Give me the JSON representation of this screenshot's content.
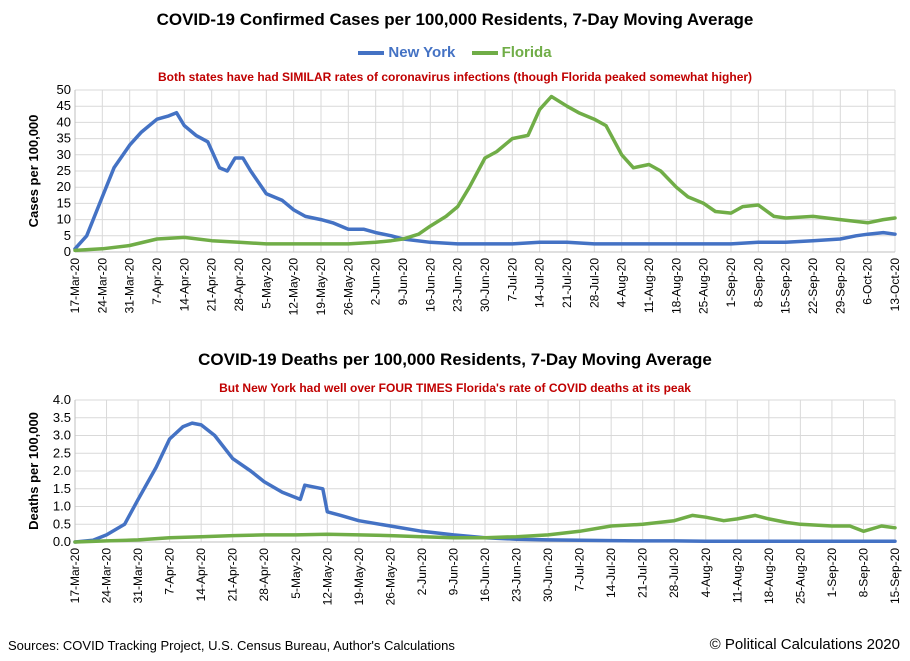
{
  "footer": {
    "sources": "Sources:  COVID Tracking Project, U.S. Census Bureau, Author's Calculations",
    "copyright": "© Political Calculations 2020"
  },
  "colors": {
    "new_york": "#4472c4",
    "florida": "#70ad47",
    "grid": "#d9d9d9",
    "subtitle": "#c00000"
  },
  "chart_data": [
    {
      "type": "line",
      "title": "COVID-19 Confirmed Cases per 100,000 Residents, 7-Day Moving Average",
      "subtitle": "Both states have had SIMILAR rates of coronavirus infections (though Florida peaked somewhat higher)",
      "ylabel": "Cases per 100,000",
      "xlabel": "",
      "ylim": [
        0,
        50
      ],
      "yticks": [
        0,
        5,
        10,
        15,
        20,
        25,
        30,
        35,
        40,
        45,
        50
      ],
      "x_start": "17-Mar-20",
      "x_tick_labels": [
        "17-Mar-20",
        "24-Mar-20",
        "31-Mar-20",
        "7-Apr-20",
        "14-Apr-20",
        "21-Apr-20",
        "28-Apr-20",
        "5-May-20",
        "12-May-20",
        "19-May-20",
        "26-May-20",
        "2-Jun-20",
        "9-Jun-20",
        "16-Jun-20",
        "23-Jun-20",
        "30-Jun-20",
        "7-Jul-20",
        "14-Jul-20",
        "21-Jul-20",
        "28-Jul-20",
        "4-Aug-20",
        "11-Aug-20",
        "18-Aug-20",
        "25-Aug-20",
        "1-Sep-20",
        "8-Sep-20",
        "15-Sep-20",
        "22-Sep-20",
        "29-Sep-20",
        "6-Oct-20",
        "13-Oct-20"
      ],
      "grid": true,
      "legend": "top-center",
      "series": [
        {
          "name": "New York",
          "color": "#4472c4",
          "x": [
            "17-Mar-20",
            "20-Mar-20",
            "24-Mar-20",
            "27-Mar-20",
            "31-Mar-20",
            "3-Apr-20",
            "7-Apr-20",
            "10-Apr-20",
            "12-Apr-20",
            "14-Apr-20",
            "17-Apr-20",
            "20-Apr-20",
            "23-Apr-20",
            "25-Apr-20",
            "27-Apr-20",
            "29-Apr-20",
            "1-May-20",
            "5-May-20",
            "9-May-20",
            "12-May-20",
            "15-May-20",
            "19-May-20",
            "22-May-20",
            "26-May-20",
            "30-May-20",
            "2-Jun-20",
            "6-Jun-20",
            "9-Jun-20",
            "16-Jun-20",
            "23-Jun-20",
            "30-Jun-20",
            "7-Jul-20",
            "14-Jul-20",
            "21-Jul-20",
            "28-Jul-20",
            "4-Aug-20",
            "11-Aug-20",
            "18-Aug-20",
            "25-Aug-20",
            "1-Sep-20",
            "8-Sep-20",
            "15-Sep-20",
            "22-Sep-20",
            "29-Sep-20",
            "3-Oct-20",
            "6-Oct-20",
            "10-Oct-20",
            "13-Oct-20"
          ],
          "values": [
            1,
            5,
            17,
            26,
            33,
            37,
            41,
            42,
            43,
            39,
            36,
            34,
            26,
            25,
            29,
            29,
            25,
            18,
            16,
            13,
            11,
            10,
            9,
            7,
            7,
            6,
            5,
            4,
            3,
            2.5,
            2.5,
            2.5,
            3,
            3,
            2.5,
            2.5,
            2.5,
            2.5,
            2.5,
            2.5,
            3,
            3,
            3.5,
            4,
            5,
            5.5,
            6,
            5.5
          ]
        },
        {
          "name": "Florida",
          "color": "#70ad47",
          "x": [
            "17-Mar-20",
            "24-Mar-20",
            "31-Mar-20",
            "7-Apr-20",
            "14-Apr-20",
            "21-Apr-20",
            "28-Apr-20",
            "5-May-20",
            "12-May-20",
            "19-May-20",
            "26-May-20",
            "2-Jun-20",
            "6-Jun-20",
            "9-Jun-20",
            "13-Jun-20",
            "16-Jun-20",
            "20-Jun-20",
            "23-Jun-20",
            "26-Jun-20",
            "30-Jun-20",
            "3-Jul-20",
            "7-Jul-20",
            "11-Jul-20",
            "14-Jul-20",
            "17-Jul-20",
            "21-Jul-20",
            "24-Jul-20",
            "28-Jul-20",
            "31-Jul-20",
            "4-Aug-20",
            "7-Aug-20",
            "11-Aug-20",
            "14-Aug-20",
            "18-Aug-20",
            "21-Aug-20",
            "25-Aug-20",
            "28-Aug-20",
            "1-Sep-20",
            "4-Sep-20",
            "8-Sep-20",
            "12-Sep-20",
            "15-Sep-20",
            "22-Sep-20",
            "29-Sep-20",
            "6-Oct-20",
            "10-Oct-20",
            "13-Oct-20"
          ],
          "values": [
            0.5,
            1,
            2,
            4,
            4.5,
            3.5,
            3,
            2.5,
            2.5,
            2.5,
            2.5,
            3,
            3.5,
            4,
            5.5,
            8,
            11,
            14,
            20,
            29,
            31,
            35,
            36,
            44,
            48,
            45,
            43,
            41,
            39,
            30,
            26,
            27,
            25,
            20,
            17,
            15,
            12.5,
            12,
            14,
            14.5,
            11,
            10.5,
            11,
            10,
            9,
            10,
            10.5
          ]
        }
      ]
    },
    {
      "type": "line",
      "title": "COVID-19 Deaths per 100,000 Residents, 7-Day Moving Average",
      "subtitle": "But New York had well over FOUR TIMES Florida's rate of COVID deaths at its peak",
      "ylabel": "Deaths per 100,000",
      "xlabel": "",
      "ylim": [
        0,
        4
      ],
      "yticks": [
        "0.0",
        "0.5",
        "1.0",
        "1.5",
        "2.0",
        "2.5",
        "3.0",
        "3.5",
        "4.0"
      ],
      "x_start": "17-Mar-20",
      "x_tick_labels": [
        "17-Mar-20",
        "24-Mar-20",
        "31-Mar-20",
        "7-Apr-20",
        "14-Apr-20",
        "21-Apr-20",
        "28-Apr-20",
        "5-May-20",
        "12-May-20",
        "19-May-20",
        "26-May-20",
        "2-Jun-20",
        "9-Jun-20",
        "16-Jun-20",
        "23-Jun-20",
        "30-Jun-20",
        "7-Jul-20",
        "14-Jul-20",
        "21-Jul-20",
        "28-Jul-20",
        "4-Aug-20",
        "11-Aug-20",
        "18-Aug-20",
        "25-Aug-20",
        "1-Sep-20",
        "8-Sep-20",
        "15-Sep-20"
      ],
      "grid": true,
      "series": [
        {
          "name": "New York",
          "color": "#4472c4",
          "x": [
            "17-Mar-20",
            "21-Mar-20",
            "24-Mar-20",
            "28-Mar-20",
            "31-Mar-20",
            "4-Apr-20",
            "7-Apr-20",
            "10-Apr-20",
            "12-Apr-20",
            "14-Apr-20",
            "17-Apr-20",
            "21-Apr-20",
            "25-Apr-20",
            "28-Apr-20",
            "2-May-20",
            "6-May-20",
            "7-May-20",
            "11-May-20",
            "12-May-20",
            "15-May-20",
            "19-May-20",
            "26-May-20",
            "2-Jun-20",
            "9-Jun-20",
            "16-Jun-20",
            "23-Jun-20",
            "30-Jun-20",
            "7-Jul-20",
            "14-Jul-20",
            "21-Jul-20",
            "28-Jul-20",
            "4-Aug-20",
            "11-Aug-20",
            "18-Aug-20",
            "25-Aug-20",
            "1-Sep-20",
            "8-Sep-20",
            "15-Sep-20"
          ],
          "values": [
            0,
            0.05,
            0.2,
            0.5,
            1.2,
            2.1,
            2.9,
            3.25,
            3.35,
            3.3,
            3.0,
            2.35,
            2.0,
            1.7,
            1.4,
            1.2,
            1.6,
            1.5,
            0.85,
            0.75,
            0.6,
            0.45,
            0.3,
            0.2,
            0.12,
            0.08,
            0.06,
            0.05,
            0.04,
            0.03,
            0.03,
            0.02,
            0.02,
            0.02,
            0.02,
            0.02,
            0.02,
            0.02
          ]
        },
        {
          "name": "Florida",
          "color": "#70ad47",
          "x": [
            "17-Mar-20",
            "24-Mar-20",
            "31-Mar-20",
            "7-Apr-20",
            "14-Apr-20",
            "21-Apr-20",
            "28-Apr-20",
            "5-May-20",
            "12-May-20",
            "19-May-20",
            "26-May-20",
            "2-Jun-20",
            "9-Jun-20",
            "16-Jun-20",
            "23-Jun-20",
            "30-Jun-20",
            "7-Jul-20",
            "14-Jul-20",
            "21-Jul-20",
            "28-Jul-20",
            "1-Aug-20",
            "4-Aug-20",
            "8-Aug-20",
            "11-Aug-20",
            "15-Aug-20",
            "18-Aug-20",
            "22-Aug-20",
            "25-Aug-20",
            "1-Sep-20",
            "5-Sep-20",
            "8-Sep-20",
            "12-Sep-20",
            "15-Sep-20"
          ],
          "values": [
            0,
            0.03,
            0.06,
            0.12,
            0.15,
            0.18,
            0.2,
            0.2,
            0.22,
            0.2,
            0.18,
            0.15,
            0.12,
            0.12,
            0.15,
            0.2,
            0.3,
            0.45,
            0.5,
            0.6,
            0.75,
            0.7,
            0.6,
            0.65,
            0.75,
            0.65,
            0.55,
            0.5,
            0.45,
            0.45,
            0.3,
            0.45,
            0.4
          ]
        }
      ]
    }
  ]
}
